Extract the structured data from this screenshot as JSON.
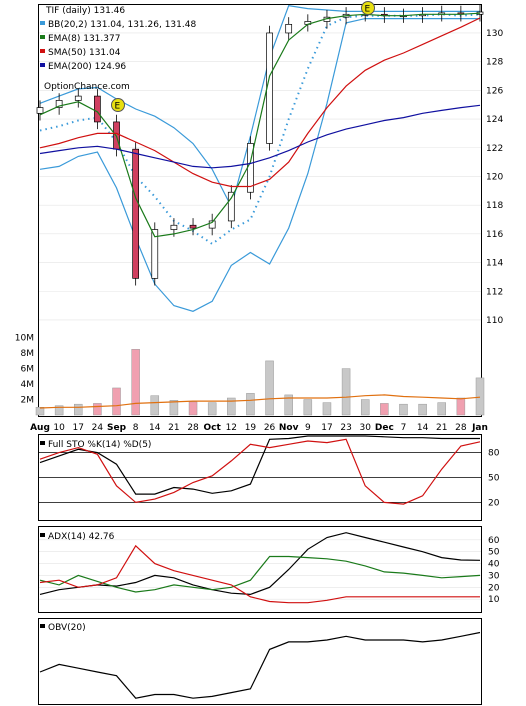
{
  "header": {
    "title": "TIF (daily) 131.46",
    "watermark": "OptionChance.com"
  },
  "legend": [
    {
      "text": "BB(20,2) 131.04, 131.26, 131.48",
      "color": "#3a9ad9"
    },
    {
      "text": "EMA(8) 131.377",
      "color": "#1a7a1a"
    },
    {
      "text": "SMA(50) 131.04",
      "color": "#d01010"
    },
    {
      "text": "EMA(200) 124.96",
      "color": "#1010a0"
    }
  ],
  "x_axis": {
    "labels": [
      "Aug",
      "10",
      "17",
      "24",
      "Sep",
      "8",
      "14",
      "21",
      "28",
      "Oct",
      "12",
      "19",
      "26",
      "Nov",
      "9",
      "17",
      "23",
      "30",
      "Dec",
      "7",
      "14",
      "21",
      "28",
      "Jan"
    ]
  },
  "panels": {
    "price": {
      "y_ticks": [
        "130",
        "128",
        "126",
        "124",
        "122",
        "120",
        "118",
        "116",
        "114",
        "112",
        "110"
      ]
    },
    "volume": {
      "y_ticks": [
        "10M",
        "8M",
        "6M",
        "4M",
        "2M"
      ]
    },
    "stoch": {
      "label": "Full STO %K(14) %D(5)",
      "y_ticks": [
        "80",
        "50",
        "20"
      ]
    },
    "adx": {
      "label": "ADX(14) 42.76",
      "y_ticks": [
        "60",
        "50",
        "40",
        "30",
        "20",
        "10"
      ]
    },
    "obv": {
      "label": "OBV(20)"
    }
  },
  "earnings_markers": [
    "E",
    "E"
  ],
  "colors": {
    "bb": "#3a9ad9",
    "ema8": "#1a7a1a",
    "sma50": "#d01010",
    "ema200": "#1010a0",
    "up_candle": "#ffffff",
    "down_candle": "#d04060",
    "vol_up": "#c8c8c8",
    "vol_down": "#f0a0b0",
    "vol_avg": "#e07010",
    "stoch_k": "#000000",
    "stoch_d": "#d01010",
    "adx": "#000000",
    "plus_di": "#1a7a1a",
    "minus_di": "#d01010",
    "obv": "#000000",
    "earnings": "#e8e010"
  },
  "chart_data": [
    {
      "type": "line",
      "panel": "price",
      "title": "TIF (daily) 131.46",
      "ylim": [
        109.3,
        131.6
      ],
      "x": [
        "Aug",
        "10",
        "17",
        "24",
        "Sep",
        "8",
        "14",
        "21",
        "28",
        "Oct",
        "12",
        "19",
        "26",
        "Nov",
        "9",
        "17",
        "23",
        "30",
        "Dec",
        "7",
        "14",
        "21",
        "28",
        "Jan"
      ],
      "series": [
        {
          "name": "BB(20,2) 131.04, 131.26, 131.48",
          "role": "bb_upper",
          "values": [
            125.1,
            125.6,
            126.1,
            126.2,
            125.4,
            124.7,
            124.2,
            123.4,
            122.3,
            120.5,
            117.9,
            122.8,
            128.3,
            131.9,
            131.7,
            131.6,
            131.5,
            131.5,
            131.5,
            131.5,
            131.5,
            131.5,
            131.5,
            131.5
          ]
        },
        {
          "name": "BB middle",
          "role": "bb_mid",
          "values": [
            123.2,
            123.5,
            123.9,
            124.1,
            122.4,
            120.0,
            118.6,
            116.9,
            116.2,
            115.3,
            116.3,
            117.0,
            120.0,
            124.0,
            127.5,
            130.5,
            131.1,
            131.2,
            131.2,
            131.2,
            131.2,
            131.3,
            131.2,
            131.3
          ]
        },
        {
          "name": "BB lower",
          "role": "bb_lower",
          "values": [
            120.5,
            120.7,
            121.4,
            121.7,
            119.2,
            115.7,
            112.5,
            111.0,
            110.6,
            111.3,
            113.8,
            114.7,
            113.9,
            116.4,
            120.2,
            125.1,
            130.7,
            131.0,
            131.0,
            131.0,
            131.0,
            131.0,
            131.0,
            131.0
          ]
        },
        {
          "name": "EMA(8) 131.377",
          "role": "ema8",
          "values": [
            124.3,
            124.9,
            125.2,
            124.5,
            122.8,
            118.5,
            115.8,
            116.0,
            116.3,
            116.8,
            118.5,
            121.0,
            127.0,
            129.5,
            130.6,
            131.0,
            131.2,
            131.3,
            131.2,
            131.2,
            131.3,
            131.3,
            131.3,
            131.38
          ]
        },
        {
          "name": "SMA(50) 131.04",
          "role": "sma50",
          "values": [
            122.0,
            122.3,
            122.7,
            123.0,
            123.0,
            122.4,
            121.8,
            121.0,
            120.2,
            119.6,
            119.3,
            119.3,
            119.8,
            121.0,
            123.0,
            124.8,
            126.3,
            127.4,
            128.1,
            128.6,
            129.2,
            129.8,
            130.4,
            131.04
          ]
        },
        {
          "name": "EMA(200) 124.96",
          "role": "ema200",
          "values": [
            121.6,
            121.8,
            122.0,
            122.1,
            121.9,
            121.6,
            121.3,
            121.0,
            120.7,
            120.6,
            120.7,
            120.9,
            121.3,
            121.8,
            122.4,
            122.9,
            123.3,
            123.6,
            123.9,
            124.1,
            124.4,
            124.6,
            124.8,
            124.96
          ]
        },
        {
          "name": "Close",
          "role": "close",
          "values": [
            124.8,
            125.3,
            125.6,
            123.8,
            121.9,
            112.9,
            116.3,
            116.6,
            116.4,
            116.9,
            118.9,
            122.3,
            130.0,
            130.6,
            130.8,
            131.1,
            131.3,
            131.3,
            131.2,
            131.2,
            131.3,
            131.4,
            131.3,
            131.46
          ]
        }
      ]
    },
    {
      "type": "bar",
      "panel": "volume",
      "ylabel": "",
      "ylim": [
        0,
        11
      ],
      "categories": [
        "Aug",
        "10",
        "17",
        "24",
        "Sep",
        "8",
        "14",
        "21",
        "28",
        "Oct",
        "12",
        "19",
        "26",
        "Nov",
        "9",
        "17",
        "23",
        "30",
        "Dec",
        "7",
        "14",
        "21",
        "28",
        "Jan"
      ],
      "series": [
        {
          "name": "volume",
          "values": [
            1.0,
            1.2,
            1.4,
            1.5,
            3.5,
            8.5,
            2.5,
            1.9,
            1.7,
            1.6,
            2.2,
            2.8,
            7.0,
            2.6,
            2.0,
            1.6,
            6.0,
            2.0,
            1.5,
            1.4,
            1.4,
            1.6,
            2.2,
            4.8
          ]
        },
        {
          "name": "volume average",
          "values": [
            0.9,
            1.0,
            1.0,
            1.1,
            1.2,
            1.5,
            1.6,
            1.7,
            1.8,
            1.8,
            1.8,
            1.9,
            2.1,
            2.2,
            2.2,
            2.2,
            2.3,
            2.5,
            2.6,
            2.4,
            2.3,
            2.2,
            2.1,
            2.3
          ]
        }
      ]
    },
    {
      "type": "line",
      "panel": "stoch",
      "title": "Full STO %K(14) %D(5)",
      "ylim": [
        0,
        100
      ],
      "x": [
        "Aug",
        "10",
        "17",
        "24",
        "Sep",
        "8",
        "14",
        "21",
        "28",
        "Oct",
        "12",
        "19",
        "26",
        "Nov",
        "9",
        "17",
        "23",
        "30",
        "Dec",
        "7",
        "14",
        "21",
        "28",
        "Jan"
      ],
      "series": [
        {
          "name": "%K",
          "values": [
            68,
            76,
            84,
            80,
            66,
            30,
            30,
            38,
            36,
            31,
            34,
            42,
            96,
            97,
            100,
            100,
            100,
            100,
            99,
            98,
            98,
            97,
            97,
            97
          ]
        },
        {
          "name": "%D",
          "values": [
            72,
            80,
            86,
            78,
            40,
            20,
            24,
            32,
            44,
            52,
            70,
            90,
            86,
            90,
            94,
            92,
            96,
            40,
            20,
            18,
            28,
            60,
            88,
            93
          ]
        }
      ]
    },
    {
      "type": "line",
      "panel": "adx",
      "title": "ADX(14) 42.76",
      "ylim": [
        0,
        70
      ],
      "x": [
        "Aug",
        "10",
        "17",
        "24",
        "Sep",
        "8",
        "14",
        "21",
        "28",
        "Oct",
        "12",
        "19",
        "26",
        "Nov",
        "9",
        "17",
        "23",
        "30",
        "Dec",
        "7",
        "14",
        "21",
        "28",
        "Jan"
      ],
      "series": [
        {
          "name": "ADX",
          "values": [
            14,
            18,
            20,
            22,
            21,
            24,
            30,
            28,
            22,
            18,
            15,
            14,
            20,
            35,
            52,
            62,
            66,
            62,
            58,
            54,
            50,
            45,
            43,
            42.76
          ]
        },
        {
          "name": "+DI",
          "values": [
            26,
            22,
            30,
            25,
            20,
            16,
            18,
            22,
            20,
            18,
            20,
            26,
            46,
            46,
            45,
            44,
            42,
            38,
            33,
            32,
            30,
            28,
            29,
            30
          ]
        },
        {
          "name": "-DI",
          "values": [
            24,
            26,
            20,
            22,
            28,
            55,
            40,
            34,
            30,
            26,
            22,
            12,
            8,
            7,
            7,
            9,
            12,
            12,
            12,
            12,
            12,
            12,
            12,
            12
          ]
        }
      ]
    },
    {
      "type": "line",
      "panel": "obv",
      "title": "OBV(20)",
      "x": [
        "Aug",
        "10",
        "17",
        "24",
        "Sep",
        "8",
        "14",
        "21",
        "28",
        "Oct",
        "12",
        "19",
        "26",
        "Nov",
        "9",
        "17",
        "23",
        "30",
        "Dec",
        "7",
        "14",
        "21",
        "28",
        "Jan"
      ],
      "series": [
        {
          "name": "OBV",
          "values": [
            2,
            6,
            4,
            2,
            0,
            -12,
            -10,
            -10,
            -12,
            -11,
            -9,
            -7,
            14,
            18,
            18,
            19,
            21,
            19,
            19,
            19,
            18,
            19,
            21,
            23
          ]
        }
      ]
    }
  ]
}
